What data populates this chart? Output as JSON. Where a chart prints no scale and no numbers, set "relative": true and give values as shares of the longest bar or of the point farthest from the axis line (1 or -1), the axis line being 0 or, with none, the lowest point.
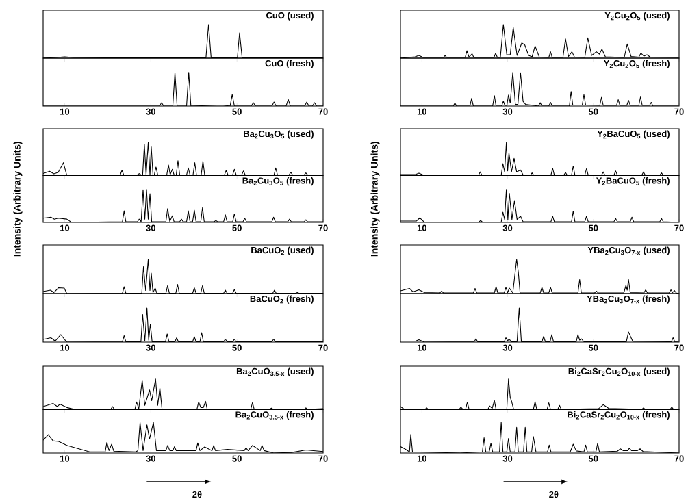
{
  "chart_data": [
    {
      "type": "line",
      "title": "CuO (used)",
      "relative": true,
      "tick_labels": false,
      "xlim": [
        5,
        70
      ],
      "color": "#000000",
      "x": [
        5,
        8,
        10,
        12,
        20,
        42.8,
        43.4,
        44,
        50.1,
        50.6,
        51.2,
        70
      ],
      "values": [
        0,
        0.02,
        0.04,
        0.02,
        0.01,
        0.01,
        1,
        0.01,
        0.01,
        0.75,
        0.01,
        0.01
      ]
    },
    {
      "type": "line",
      "title": "CuO (fresh)",
      "relative": true,
      "tick_labels": "x",
      "xlim": [
        5,
        70
      ],
      "xticks": [
        10,
        30,
        50,
        70
      ],
      "color": "#000000",
      "x": [
        5,
        32,
        32.5,
        33,
        35.1,
        35.6,
        36.1,
        38.3,
        38.8,
        39.3,
        46.5,
        48.4,
        48.9,
        49.4,
        53.3,
        53.8,
        54.3,
        58.1,
        58.6,
        59.1,
        61.4,
        61.9,
        62.4,
        65.7,
        66.2,
        66.7,
        67.5,
        68,
        68.5,
        70
      ],
      "values": [
        0,
        0,
        0.1,
        0,
        0,
        1,
        0,
        0,
        1,
        0,
        0.03,
        0,
        0.34,
        0,
        0,
        0.1,
        0,
        0,
        0.12,
        0,
        0,
        0.2,
        0,
        0,
        0.12,
        0,
        0,
        0.1,
        0,
        0
      ]
    },
    {
      "type": "line",
      "title": "Ba$_{2}$Cu$_{3}$O$_{5}$ (used)",
      "relative": true,
      "tick_labels": false,
      "xlim": [
        5,
        70
      ],
      "color": "#000000",
      "x": [
        5,
        6.5,
        7.5,
        8.5,
        9.7,
        10.5,
        22.9,
        23.3,
        23.7,
        26.9,
        27.3,
        27.7,
        28.1,
        28.5,
        28.9,
        29.4,
        29.8,
        30.1,
        30.5,
        30.8,
        31.2,
        31.6,
        33.7,
        34.1,
        34.5,
        35,
        35.4,
        35.9,
        36.3,
        36.7,
        38.3,
        38.7,
        39.1,
        39.8,
        40.2,
        40.6,
        41.7,
        42.1,
        42.5,
        47.1,
        47.5,
        47.9,
        49,
        49.4,
        49.8,
        51.1,
        51.5,
        51.9,
        58.6,
        59,
        59.4,
        62.1,
        62.5,
        62.9,
        65.6,
        66,
        66.4,
        70
      ],
      "values": [
        0.06,
        0.13,
        0.05,
        0.1,
        0.39,
        0,
        0.02,
        0.16,
        0.02,
        0.02,
        0.06,
        0.02,
        0.02,
        0.94,
        0.02,
        1,
        0.02,
        0.87,
        0.02,
        0.02,
        0.26,
        0.02,
        0.02,
        0.32,
        0.03,
        0.19,
        0.02,
        0.02,
        0.45,
        0.02,
        0.02,
        0.23,
        0.02,
        0.02,
        0.39,
        0.02,
        0.02,
        0.44,
        0.02,
        0.02,
        0.16,
        0.02,
        0.02,
        0.19,
        0.02,
        0.02,
        0.14,
        0.02,
        0.02,
        0.23,
        0.02,
        0.02,
        0.1,
        0.02,
        0.02,
        0.08,
        0.02,
        0.02
      ]
    },
    {
      "type": "line",
      "title": "Ba$_{2}$Cu$_{3}$O$_{5}$ (fresh)",
      "ylabel": "Intensity (Arbitrary Units)",
      "relative": true,
      "tick_labels": "x",
      "xlim": [
        5,
        70
      ],
      "xticks": [
        10,
        30,
        50,
        70
      ],
      "color": "#000000",
      "x": [
        5,
        6.8,
        7.6,
        8.5,
        10.5,
        11.6,
        23.4,
        23.8,
        24.2,
        26.9,
        27.3,
        27.75,
        28.2,
        28.6,
        29,
        29.4,
        29.8,
        30.2,
        33.5,
        33.9,
        34.4,
        35,
        35.4,
        36.7,
        37.1,
        37.5,
        38.3,
        38.7,
        39.1,
        39.7,
        40.1,
        40.5,
        41.6,
        42,
        42.4,
        44.7,
        45.1,
        45.5,
        46.9,
        47.3,
        47.7,
        49,
        49.4,
        49.8,
        51.4,
        51.8,
        52.2,
        58.1,
        58.5,
        58.9,
        61.8,
        62.2,
        62.6,
        65.6,
        66,
        66.4,
        70
      ],
      "values": [
        0.13,
        0.16,
        0.1,
        0.13,
        0.1,
        0,
        0.02,
        0.35,
        0.02,
        0.02,
        0.1,
        0.02,
        0.99,
        0.1,
        1,
        0.1,
        0.87,
        0.02,
        0.02,
        0.42,
        0.03,
        0.2,
        0.02,
        0.02,
        0.1,
        0.02,
        0.02,
        0.35,
        0.02,
        0.02,
        0.37,
        0.02,
        0.02,
        0.45,
        0.02,
        0.02,
        0.06,
        0.02,
        0.02,
        0.23,
        0.02,
        0.02,
        0.26,
        0.02,
        0.02,
        0.13,
        0.02,
        0.02,
        0.16,
        0.02,
        0.02,
        0.1,
        0.02,
        0.02,
        0.08,
        0.02,
        0.02
      ]
    },
    {
      "type": "line",
      "title": "BaCuO$_{2}$ (used)",
      "relative": true,
      "tick_labels": false,
      "xlim": [
        5,
        70
      ],
      "color": "#000000",
      "x": [
        5,
        6.7,
        7.5,
        8.6,
        9.9,
        10.5,
        23.4,
        23.8,
        24.2,
        27.9,
        28.3,
        28.8,
        29.4,
        29.8,
        30.1,
        30.5,
        31,
        31.4,
        33.5,
        33.9,
        34.3,
        35.8,
        36.2,
        36.6,
        39.7,
        40.1,
        40.5,
        41.6,
        42,
        42.4,
        46.9,
        47.3,
        47.7,
        49,
        49.4,
        49.8,
        58.3,
        58.7,
        59.1,
        63.6,
        64,
        64.4,
        70
      ],
      "values": [
        0.06,
        0.1,
        0.03,
        0.17,
        0.16,
        0,
        0.01,
        0.2,
        0.01,
        0.01,
        0.79,
        0.09,
        1,
        0.09,
        0.6,
        0.03,
        0.16,
        0.01,
        0.01,
        0.23,
        0.01,
        0.01,
        0.27,
        0.01,
        0.01,
        0.17,
        0.01,
        0.01,
        0.23,
        0.01,
        0.01,
        0.1,
        0.01,
        0.01,
        0.12,
        0.01,
        0.01,
        0.1,
        0.01,
        0.01,
        0.03,
        0.01,
        0.01
      ]
    },
    {
      "type": "line",
      "title": "BaCuO$_{2}$ (fresh)",
      "relative": true,
      "tick_labels": "x",
      "xlim": [
        5,
        70
      ],
      "xticks": [
        10,
        30,
        50,
        70
      ],
      "color": "#000000",
      "x": [
        5,
        6.8,
        7.8,
        9.1,
        10.5,
        23.4,
        23.8,
        24.2,
        27.7,
        28.1,
        28.6,
        29.1,
        29.5,
        29.9,
        30.3,
        33.4,
        33.8,
        34.2,
        35.6,
        36,
        36.4,
        39.7,
        40.1,
        40.5,
        41.4,
        41.8,
        42.2,
        46.9,
        47.3,
        47.7,
        49,
        49.4,
        49.8,
        58.1,
        58.5,
        58.9,
        70
      ],
      "values": [
        0.08,
        0.13,
        0.03,
        0.22,
        0,
        0.01,
        0.19,
        0.01,
        0.01,
        0.81,
        0.03,
        1,
        0.06,
        0.53,
        0.01,
        0.01,
        0.24,
        0.01,
        0.01,
        0.13,
        0.01,
        0.01,
        0.16,
        0.01,
        0.01,
        0.28,
        0.01,
        0.01,
        0.09,
        0.01,
        0.01,
        0.09,
        0.01,
        0.01,
        0.09,
        0.01,
        0.01
      ]
    },
    {
      "type": "line",
      "title": "Ba$_{2}$CuO$_{3.5-x}$ (used)",
      "relative": true,
      "tick_labels": false,
      "xlim": [
        5,
        70
      ],
      "color": "#000000",
      "x": [
        5,
        7.3,
        8.3,
        8.9,
        10.5,
        12.6,
        20.7,
        21.1,
        21.5,
        26.3,
        26.7,
        27.2,
        28,
        28.6,
        29.7,
        30.2,
        31.1,
        31.6,
        32.1,
        32.6,
        40.7,
        41.1,
        41.6,
        42.2,
        42.7,
        43.1,
        53.2,
        53.6,
        54,
        57.6,
        58,
        58.4,
        65.6,
        66,
        66.4,
        70
      ],
      "values": [
        0.1,
        0.2,
        0.1,
        0.18,
        0.07,
        0,
        0.01,
        0.1,
        0.01,
        0.01,
        0.25,
        0.03,
        0.96,
        0.14,
        0.64,
        0.29,
        1,
        0.14,
        0.71,
        0.01,
        0.01,
        0.25,
        0.07,
        0.07,
        0.27,
        0.01,
        0.01,
        0.23,
        0.01,
        0.01,
        0.05,
        0.01,
        0.01,
        0.06,
        0.01,
        0.03
      ]
    },
    {
      "type": "line",
      "title": "Ba$_{2}$CuO$_{3.5-x}$ (fresh)",
      "xlabel": "2θ",
      "relative": true,
      "tick_labels": "x",
      "xlim": [
        5,
        70
      ],
      "xticks": [
        10,
        30,
        50,
        70
      ],
      "color": "#000000",
      "x": [
        5,
        6.2,
        7.3,
        8.6,
        10.5,
        15.8,
        19.4,
        19.8,
        20.3,
        20.9,
        21.4,
        26.5,
        27,
        27.5,
        28.2,
        29.1,
        29.7,
        30.6,
        31.3,
        33.5,
        33.9,
        34.4,
        35.1,
        35.5,
        35.9,
        37.1,
        39.3,
        40.5,
        40.9,
        41.4,
        42.5,
        44.2,
        44.6,
        45,
        47.8,
        51.7,
        52.1,
        52.6,
        53.6,
        55.4,
        55.8,
        56.3,
        58.5,
        62.7,
        66,
        70
      ],
      "values": [
        0.42,
        0.6,
        0.4,
        0.38,
        0.25,
        0.04,
        0.04,
        0.35,
        0.08,
        0.29,
        0.06,
        0.04,
        0.08,
        1,
        0.08,
        0.92,
        0.46,
        1,
        0.08,
        0.08,
        0.25,
        0.08,
        0.08,
        0.21,
        0.08,
        0.08,
        0.08,
        0.08,
        0.33,
        0.08,
        0.2,
        0.08,
        0.25,
        0.08,
        0.12,
        0.08,
        0.17,
        0.08,
        0.25,
        0.08,
        0.25,
        0.08,
        0,
        0.02,
        0.1,
        0.05
      ]
    },
    {
      "type": "line",
      "title": "Y$_{2}$Cu$_{2}$O$_{5}$ (used)",
      "relative": true,
      "tick_labels": false,
      "xlim": [
        5,
        70
      ],
      "color": "#000000",
      "x": [
        5,
        8.4,
        9.3,
        10.3,
        15,
        15.4,
        15.8,
        20.1,
        20.5,
        21,
        21.7,
        22.1,
        26.8,
        27.2,
        27.6,
        28.3,
        29,
        29.8,
        30.6,
        31.3,
        32.2,
        33.3,
        34,
        34.9,
        35.7,
        36.4,
        37.4,
        39.6,
        40,
        40.4,
        42.9,
        43.5,
        44.2,
        45,
        45.6,
        48,
        48.7,
        49.6,
        50.7,
        51.4,
        52,
        52.8,
        57.2,
        57.9,
        58.8,
        60.6,
        61.1,
        61.8,
        62.5,
        63.3,
        69.9
      ],
      "values": [
        0,
        0.04,
        0.08,
        0.02,
        0.02,
        0.08,
        0.02,
        0.02,
        0.22,
        0.03,
        0.13,
        0.02,
        0.02,
        0.15,
        0.02,
        0.02,
        1,
        0.1,
        0.1,
        0.91,
        0.08,
        0.45,
        0.39,
        0.08,
        0.04,
        0.36,
        0.03,
        0.02,
        0.19,
        0.02,
        0.02,
        0.57,
        0.05,
        0.19,
        0.03,
        0.02,
        0.6,
        0.08,
        0.19,
        0.12,
        0.27,
        0.04,
        0.02,
        0.42,
        0.05,
        0.03,
        0.15,
        0.06,
        0.1,
        0.03,
        0.02
      ]
    },
    {
      "type": "line",
      "title": "Y$_{2}$Cu$_{2}$O$_{5}$ (fresh)",
      "relative": true,
      "tick_labels": "x",
      "xlim": [
        5,
        70
      ],
      "xticks": [
        10,
        30,
        50,
        70
      ],
      "color": "#000000",
      "x": [
        5,
        17.3,
        17.7,
        18.1,
        21.2,
        21.6,
        22,
        26.5,
        26.9,
        27.3,
        28.6,
        29,
        29.4,
        29.8,
        30.2,
        30.6,
        31.2,
        31.8,
        32.4,
        33,
        33.6,
        34.2,
        37.2,
        37.6,
        38,
        39.6,
        40,
        40.4,
        44.4,
        44.8,
        45.2,
        47.4,
        47.8,
        48.2,
        51.5,
        51.9,
        52.3,
        55.4,
        55.8,
        56.2,
        57.8,
        58.2,
        58.6,
        60.6,
        61,
        61.4,
        63.1,
        63.5,
        63.9,
        69.9
      ],
      "values": [
        0,
        0,
        0.09,
        0,
        0,
        0.23,
        0,
        0,
        0.31,
        0,
        0,
        0.15,
        0,
        0,
        0.33,
        0.09,
        1,
        0.05,
        0.05,
        0.99,
        0.14,
        0.05,
        0,
        0.1,
        0,
        0,
        0.11,
        0,
        0,
        0.43,
        0.03,
        0.03,
        0.34,
        0.03,
        0.02,
        0.26,
        0.02,
        0.02,
        0.19,
        0.02,
        0.02,
        0.17,
        0.02,
        0.02,
        0.27,
        0.02,
        0.02,
        0.11,
        0,
        0
      ]
    },
    {
      "type": "line",
      "title": "Y$_{2}$BaCuO$_{5}$ (used)",
      "relative": true,
      "tick_labels": false,
      "xlim": [
        5,
        70
      ],
      "color": "#000000",
      "x": [
        5,
        8.5,
        9.3,
        10.6,
        23.2,
        23.6,
        24,
        28.5,
        28.9,
        29.3,
        29.7,
        30,
        30.3,
        30.9,
        31.5,
        32.1,
        33,
        33.6,
        35.3,
        35.7,
        36.1,
        40.1,
        40.5,
        40.9,
        43.1,
        43.5,
        43.9,
        44.9,
        45.3,
        45.7,
        48,
        48.4,
        48.8,
        51.9,
        52.3,
        52.7,
        54.8,
        55.2,
        55.6,
        61.3,
        61.7,
        62.1,
        65.5,
        65.9,
        66.3,
        69.9
      ],
      "values": [
        0.03,
        0.03,
        0.07,
        0,
        0.01,
        0.11,
        0.01,
        0.01,
        0.36,
        0.11,
        1,
        0.14,
        0.69,
        0.11,
        0.52,
        0.11,
        0.17,
        0.02,
        0.01,
        0.08,
        0.01,
        0.01,
        0.22,
        0.01,
        0.01,
        0.09,
        0.01,
        0.01,
        0.29,
        0.01,
        0.01,
        0.21,
        0.01,
        0.01,
        0.11,
        0.01,
        0.01,
        0.14,
        0.01,
        0.01,
        0.11,
        0.01,
        0.01,
        0.08,
        0.01,
        0
      ]
    },
    {
      "type": "line",
      "title": "Y$_{2}$BaCuO$_{5}$ (fresh)",
      "ylabel": "Intensity (Arbitrary Units)",
      "relative": true,
      "tick_labels": "x",
      "xlim": [
        5,
        70
      ],
      "xticks": [
        10,
        30,
        50,
        70
      ],
      "color": "#000000",
      "x": [
        5,
        8.7,
        9.5,
        10.6,
        23.3,
        23.7,
        24.1,
        28.5,
        28.9,
        29.3,
        29.7,
        30.05,
        30.4,
        31,
        31.6,
        32.2,
        33,
        33.6,
        40.1,
        40.5,
        40.9,
        44.9,
        45.3,
        45.7,
        48,
        48.4,
        48.8,
        54.8,
        55.2,
        55.6,
        58.6,
        59,
        59.4,
        65.5,
        65.9,
        66.3,
        69.9
      ],
      "values": [
        0.04,
        0.04,
        0.14,
        0,
        0.01,
        0.06,
        0.01,
        0.01,
        0.31,
        0.09,
        1,
        0.09,
        0.88,
        0.09,
        0.66,
        0.09,
        0.19,
        0.02,
        0.02,
        0.19,
        0.02,
        0.02,
        0.34,
        0.02,
        0.02,
        0.19,
        0.02,
        0.02,
        0.12,
        0.02,
        0.02,
        0.16,
        0.02,
        0.02,
        0.12,
        0.02,
        0
      ]
    },
    {
      "type": "line",
      "title": "YBa$_{2}$Cu$_{3}$O$_{7-x}$ (used)",
      "relative": true,
      "tick_labels": false,
      "xlim": [
        5,
        70
      ],
      "color": "#000000",
      "x": [
        5,
        7.1,
        7.9,
        9.3,
        10.6,
        14.2,
        14.6,
        15,
        22,
        22.4,
        22.8,
        26.9,
        27.3,
        27.7,
        29.2,
        29.6,
        30,
        30.4,
        31.2,
        32.1,
        32.5,
        32.9,
        37.6,
        38,
        38.4,
        39.6,
        40,
        40.4,
        46.4,
        46.8,
        47.2,
        50.3,
        50.7,
        51.1,
        57.1,
        57.6,
        57.9,
        58.2,
        58.6,
        61.8,
        62.2,
        62.6,
        67.7,
        68.1,
        68.5,
        68.9,
        69.3,
        69.9
      ],
      "values": [
        0.08,
        0.15,
        0.05,
        0.11,
        0.03,
        0.02,
        0.07,
        0.02,
        0.02,
        0.15,
        0.02,
        0.02,
        0.2,
        0.02,
        0.02,
        0.18,
        0.03,
        0.16,
        0.02,
        1,
        0.62,
        0.02,
        0.02,
        0.18,
        0.02,
        0.02,
        0.18,
        0.02,
        0.02,
        0.41,
        0.02,
        0.02,
        0.07,
        0.02,
        0.02,
        0.24,
        0.1,
        0.41,
        0.03,
        0.02,
        0.11,
        0.02,
        0.02,
        0.11,
        0.03,
        0.09,
        0.02,
        0
      ]
    },
    {
      "type": "line",
      "title": "YBa$_{2}$Cu$_{3}$O$_{7-x}$ (fresh)",
      "relative": true,
      "tick_labels": "x",
      "xlim": [
        5,
        70
      ],
      "xticks": [
        10,
        30,
        50,
        70
      ],
      "color": "#000000",
      "x": [
        5,
        8.5,
        9.3,
        10.6,
        22.2,
        22.6,
        23,
        29.2,
        29.6,
        30,
        30.4,
        30.8,
        32.2,
        32.7,
        33.2,
        38,
        38.4,
        38.8,
        39.9,
        40.3,
        40.7,
        46,
        46.4,
        46.8,
        47.2,
        47.8,
        57.7,
        58.2,
        59.2,
        68.2,
        68.6,
        69,
        69.9
      ],
      "values": [
        0.03,
        0.03,
        0.07,
        0,
        0.01,
        0.1,
        0.01,
        0.01,
        0.13,
        0.04,
        0.09,
        0.01,
        0.01,
        1,
        0.01,
        0.01,
        0.17,
        0.01,
        0.01,
        0.22,
        0.01,
        0.01,
        0.22,
        0.06,
        0.1,
        0.01,
        0.01,
        0.3,
        0.02,
        0.01,
        0.13,
        0.01,
        0
      ]
    },
    {
      "type": "line",
      "title": "Bi$_{2}$CaSr$_{2}$Cu$_{2}$O$_{10-x}$ (used)",
      "relative": true,
      "tick_labels": false,
      "xlim": [
        5,
        70
      ],
      "color": "#000000",
      "x": [
        5,
        6,
        10.7,
        11.1,
        11.5,
        18.7,
        19.1,
        19.5,
        20.2,
        20.6,
        21,
        25.4,
        25.8,
        26.4,
        26.9,
        27.3,
        29.8,
        30.2,
        30.6,
        30.9,
        31.4,
        36,
        36.4,
        36.8,
        39.2,
        39.6,
        40,
        41.7,
        42.1,
        42.5,
        51.2,
        52.3,
        53.6,
        61.3,
        61.7,
        62.1,
        67.9,
        68.3,
        68.7,
        69.9
      ],
      "values": [
        0.1,
        0,
        0.01,
        0.06,
        0.01,
        0.01,
        0.08,
        0.02,
        0.02,
        0.24,
        0.01,
        0.01,
        0.12,
        0.04,
        0.3,
        0.01,
        0.01,
        1,
        0.4,
        0.28,
        0.01,
        0.01,
        0.26,
        0.01,
        0.01,
        0.22,
        0.01,
        0.01,
        0.14,
        0.01,
        0.03,
        0.16,
        0.04,
        0.01,
        0.06,
        0.01,
        0.01,
        0.08,
        0.01,
        0
      ]
    },
    {
      "type": "line",
      "title": "Bi$_{2}$CaSr$_{2}$Cu$_{2}$O$_{10-x}$ (fresh)",
      "xlabel": "2θ",
      "relative": true,
      "tick_labels": "x",
      "xlim": [
        5,
        70
      ],
      "xticks": [
        10,
        30,
        50,
        70
      ],
      "color": "#000000",
      "x": [
        5,
        6,
        7.1,
        7.4,
        7.8,
        18.9,
        24.1,
        24.5,
        24.9,
        25.7,
        26.1,
        26.5,
        28.1,
        28.5,
        28.9,
        29.8,
        30.2,
        30.6,
        31.7,
        32.1,
        32.5,
        33.7,
        34.1,
        34.5,
        35.6,
        36,
        36.6,
        39.3,
        39.7,
        40.1,
        44.6,
        45.3,
        46,
        47.8,
        48.2,
        48.6,
        50.6,
        51,
        51.4,
        55.6,
        56.3,
        57,
        58,
        58.4,
        58.9,
        60.3,
        60.9,
        61.6,
        69.9
      ],
      "values": [
        0.21,
        0.14,
        0.04,
        0.61,
        0.04,
        0,
        0.04,
        0.5,
        0.04,
        0.04,
        0.32,
        0.04,
        0.04,
        1,
        0.04,
        0.04,
        0.48,
        0.04,
        0.04,
        0.84,
        0.04,
        0.04,
        0.84,
        0.04,
        0.04,
        0.54,
        0.04,
        0.04,
        0.26,
        0.04,
        0.04,
        0.29,
        0.07,
        0.04,
        0.26,
        0.04,
        0.04,
        0.32,
        0.04,
        0.06,
        0.14,
        0.08,
        0.08,
        0.16,
        0.08,
        0.08,
        0.14,
        0.05,
        0
      ]
    }
  ]
}
